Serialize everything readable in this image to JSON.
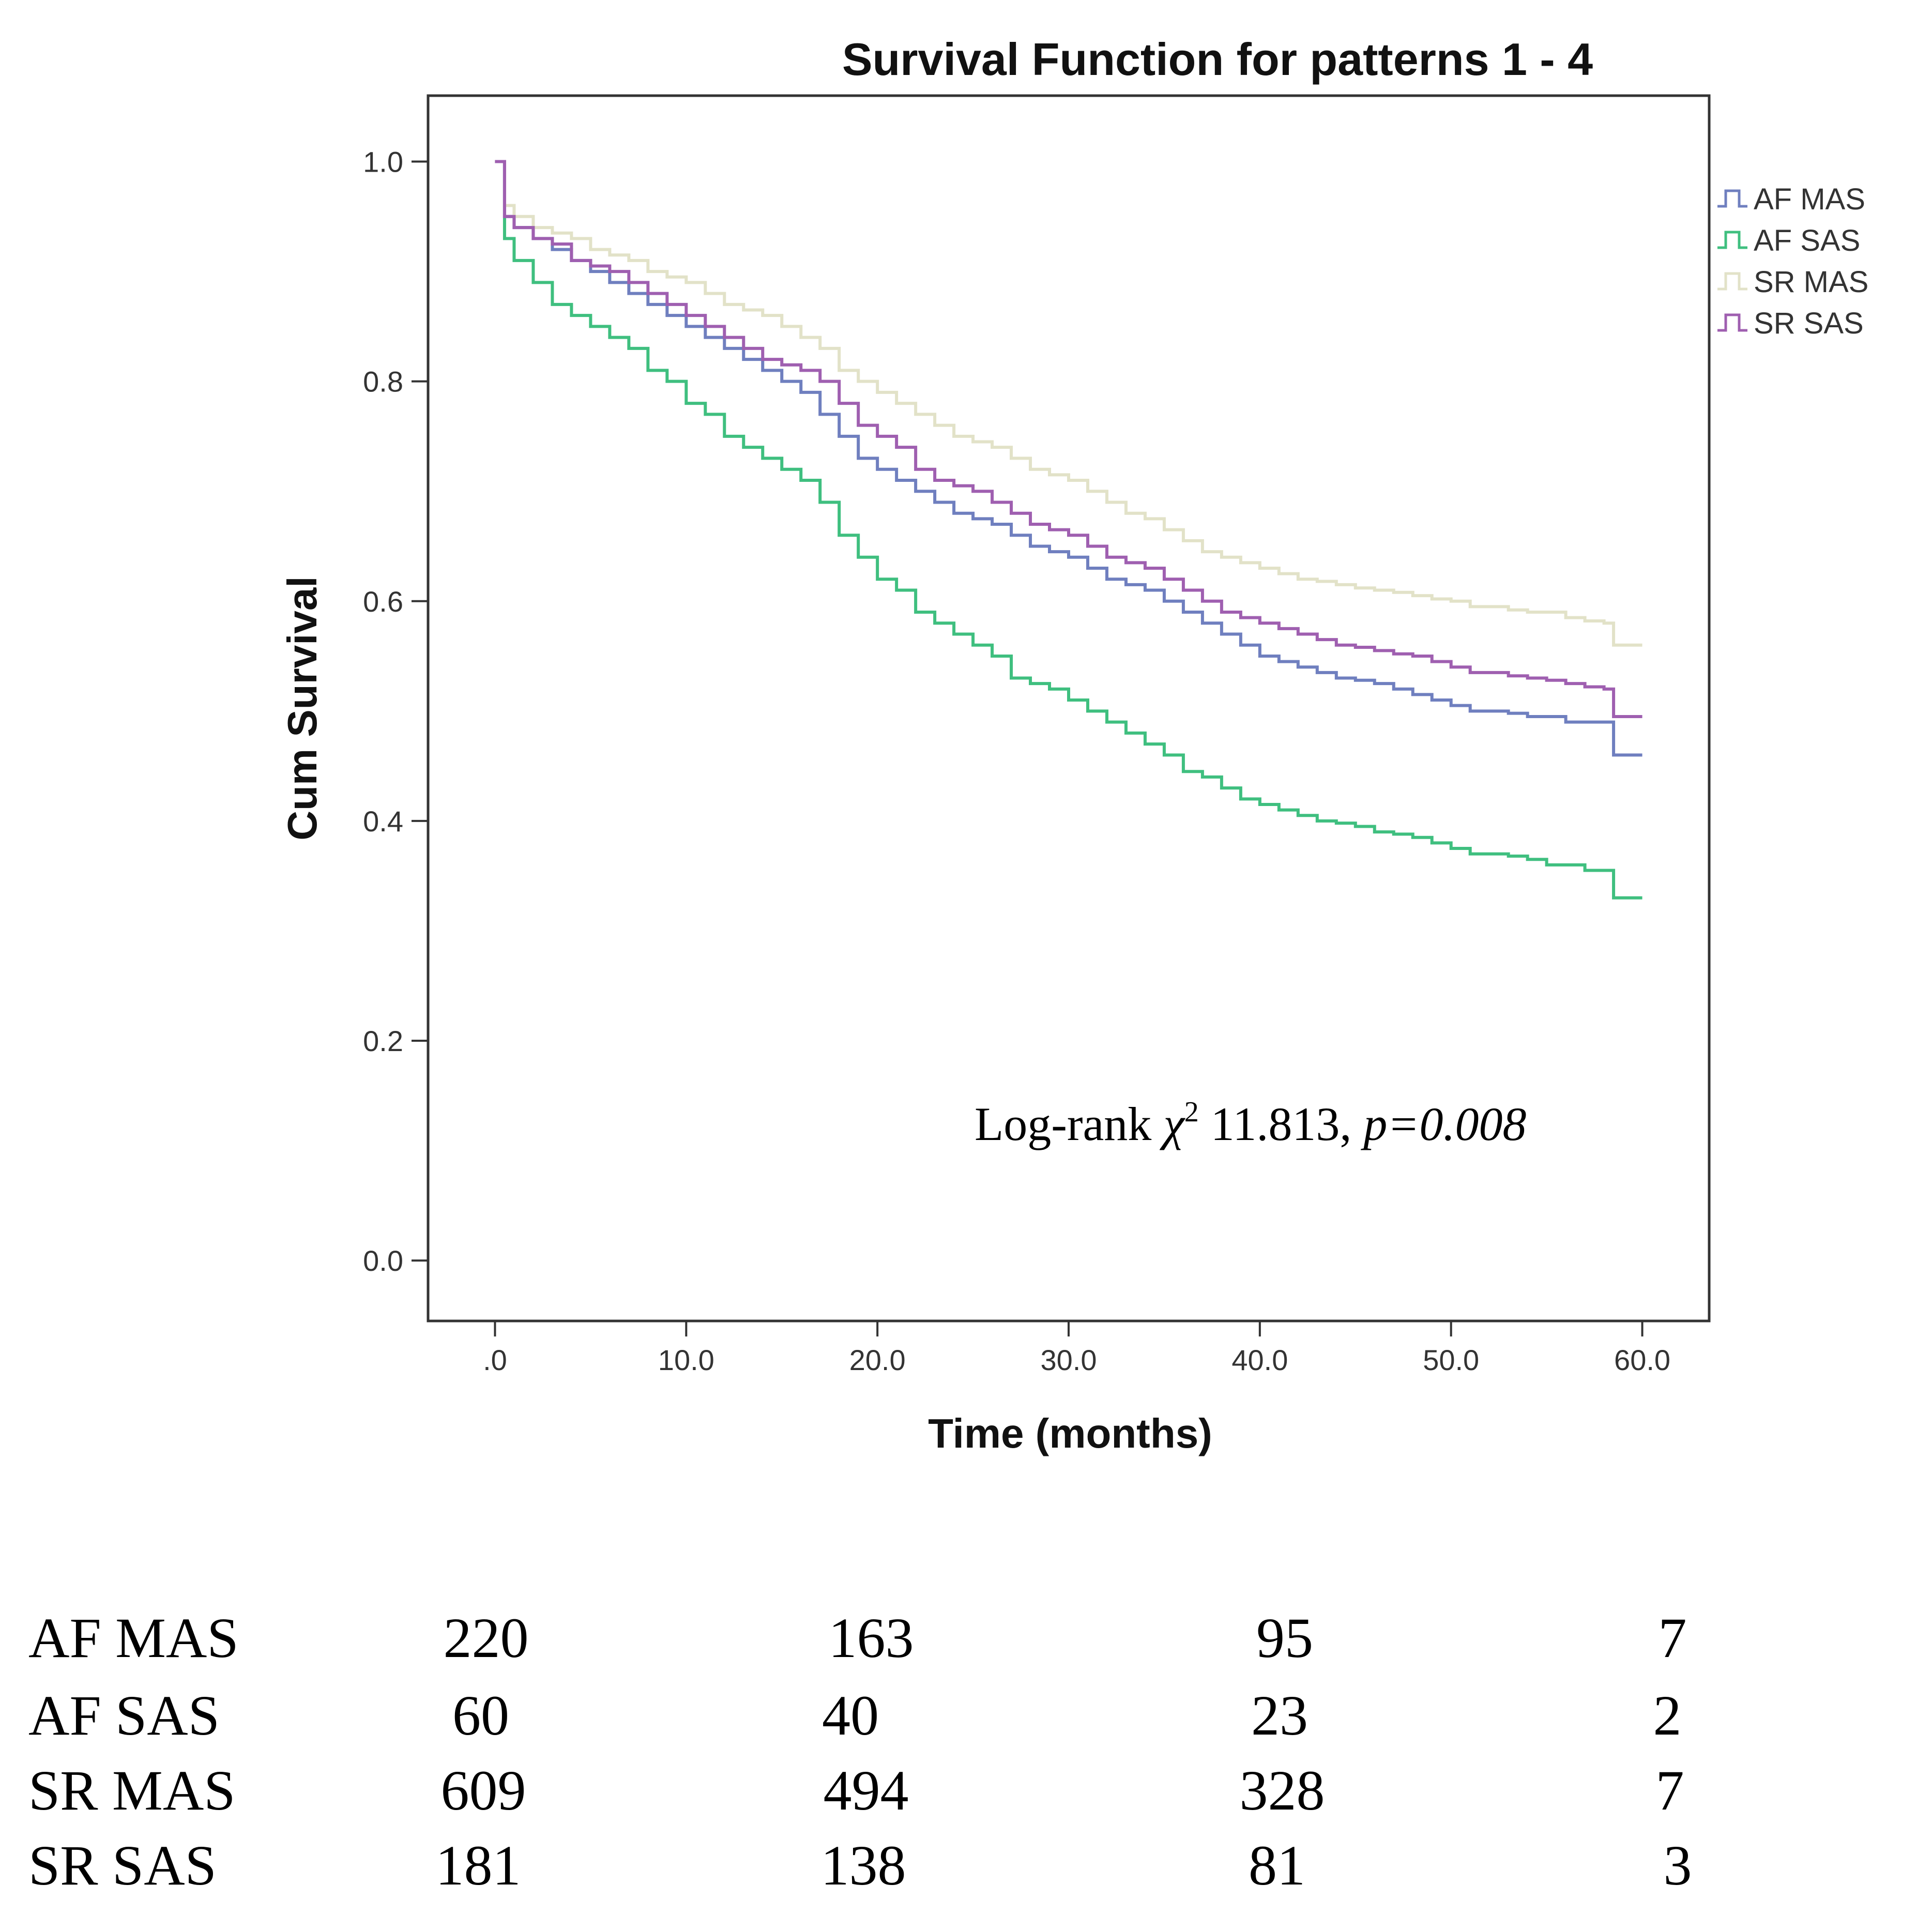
{
  "chart_data": {
    "type": "line",
    "title": "Survival Function for patterns 1 - 4",
    "xlabel": "Time (months)",
    "ylabel": "Cum Survival",
    "xlim": [
      -3.5,
      63.5
    ],
    "ylim": [
      -0.055,
      1.06
    ],
    "xticks": [
      0,
      10,
      20,
      30,
      40,
      50,
      60
    ],
    "xtick_labels": [
      ".0",
      "10.0",
      "20.0",
      "30.0",
      "40.0",
      "50.0",
      "60.0"
    ],
    "yticks": [
      0,
      0.2,
      0.4,
      0.6,
      0.8,
      1.0
    ],
    "ytick_labels": [
      "0.0",
      "0.2",
      "0.4",
      "0.6",
      "0.8",
      "1.0"
    ],
    "grid": false,
    "legend_position": "right",
    "annotation": {
      "prefix": "Log-rank ",
      "chi": "χ",
      "sup": "2",
      "stat": " 11.813, ",
      "p_label": "p",
      "p_value": "=0.008"
    },
    "series": [
      {
        "name": "AF MAS",
        "color": "#6f7fbf",
        "x": [
          0,
          0.3,
          0.5,
          1,
          2,
          3,
          4,
          5,
          6,
          7,
          8,
          9,
          10,
          11,
          12,
          13,
          14,
          15,
          16,
          17,
          18,
          19,
          20,
          21,
          22,
          23,
          24,
          25,
          26,
          27,
          28,
          29,
          30,
          31,
          32,
          33,
          34,
          35,
          36,
          37,
          38,
          39,
          40,
          41,
          42,
          43,
          44,
          45,
          46,
          47,
          48,
          49,
          50,
          51,
          52,
          53,
          54,
          55,
          56,
          57,
          58,
          58.5,
          60
        ],
        "y": [
          1.0,
          1.0,
          0.95,
          0.94,
          0.93,
          0.92,
          0.91,
          0.9,
          0.89,
          0.88,
          0.87,
          0.86,
          0.85,
          0.84,
          0.83,
          0.82,
          0.81,
          0.8,
          0.79,
          0.77,
          0.75,
          0.73,
          0.72,
          0.71,
          0.7,
          0.69,
          0.68,
          0.675,
          0.67,
          0.66,
          0.65,
          0.645,
          0.64,
          0.63,
          0.62,
          0.615,
          0.61,
          0.6,
          0.59,
          0.58,
          0.57,
          0.56,
          0.55,
          0.545,
          0.54,
          0.535,
          0.53,
          0.528,
          0.525,
          0.52,
          0.515,
          0.51,
          0.505,
          0.5,
          0.5,
          0.498,
          0.495,
          0.495,
          0.49,
          0.49,
          0.49,
          0.46,
          0.46
        ]
      },
      {
        "name": "AF SAS",
        "color": "#3fbf7f",
        "x": [
          0,
          0.3,
          0.5,
          1,
          2,
          3,
          4,
          5,
          6,
          7,
          8,
          9,
          10,
          11,
          12,
          13,
          14,
          15,
          16,
          17,
          18,
          19,
          20,
          21,
          22,
          23,
          24,
          25,
          26,
          27,
          28,
          29,
          30,
          31,
          32,
          33,
          34,
          35,
          36,
          37,
          38,
          39,
          40,
          41,
          42,
          43,
          44,
          45,
          46,
          47,
          48,
          49,
          50,
          51,
          52,
          53,
          54,
          55,
          56,
          57,
          58,
          58.5,
          60
        ],
        "y": [
          1.0,
          1.0,
          0.93,
          0.91,
          0.89,
          0.87,
          0.86,
          0.85,
          0.84,
          0.83,
          0.81,
          0.8,
          0.78,
          0.77,
          0.75,
          0.74,
          0.73,
          0.72,
          0.71,
          0.69,
          0.66,
          0.64,
          0.62,
          0.61,
          0.59,
          0.58,
          0.57,
          0.56,
          0.55,
          0.53,
          0.525,
          0.52,
          0.51,
          0.5,
          0.49,
          0.48,
          0.47,
          0.46,
          0.445,
          0.44,
          0.43,
          0.42,
          0.415,
          0.41,
          0.405,
          0.4,
          0.398,
          0.395,
          0.39,
          0.388,
          0.385,
          0.38,
          0.375,
          0.37,
          0.37,
          0.368,
          0.365,
          0.36,
          0.36,
          0.355,
          0.355,
          0.33,
          0.33
        ]
      },
      {
        "name": "SR MAS",
        "color": "#e2e2c8",
        "x": [
          0,
          0.3,
          0.5,
          1,
          2,
          3,
          4,
          5,
          6,
          7,
          8,
          9,
          10,
          11,
          12,
          13,
          14,
          15,
          16,
          17,
          18,
          19,
          20,
          21,
          22,
          23,
          24,
          25,
          26,
          27,
          28,
          29,
          30,
          31,
          32,
          33,
          34,
          35,
          36,
          37,
          38,
          39,
          40,
          41,
          42,
          43,
          44,
          45,
          46,
          47,
          48,
          49,
          50,
          51,
          52,
          53,
          54,
          55,
          56,
          57,
          58,
          58.5,
          60
        ],
        "y": [
          1.0,
          1.0,
          0.96,
          0.95,
          0.94,
          0.935,
          0.93,
          0.92,
          0.915,
          0.91,
          0.9,
          0.895,
          0.89,
          0.88,
          0.87,
          0.865,
          0.86,
          0.85,
          0.84,
          0.83,
          0.81,
          0.8,
          0.79,
          0.78,
          0.77,
          0.76,
          0.75,
          0.745,
          0.74,
          0.73,
          0.72,
          0.715,
          0.71,
          0.7,
          0.69,
          0.68,
          0.675,
          0.665,
          0.655,
          0.645,
          0.64,
          0.635,
          0.63,
          0.625,
          0.62,
          0.618,
          0.615,
          0.612,
          0.61,
          0.608,
          0.605,
          0.602,
          0.6,
          0.595,
          0.595,
          0.592,
          0.59,
          0.59,
          0.585,
          0.582,
          0.58,
          0.56,
          0.56
        ]
      },
      {
        "name": "SR SAS",
        "color": "#9f5fb0",
        "x": [
          0,
          0.3,
          0.5,
          1,
          2,
          3,
          4,
          5,
          6,
          7,
          8,
          9,
          10,
          11,
          12,
          13,
          14,
          15,
          16,
          17,
          18,
          19,
          20,
          21,
          22,
          23,
          24,
          25,
          26,
          27,
          28,
          29,
          30,
          31,
          32,
          33,
          34,
          35,
          36,
          37,
          38,
          39,
          40,
          41,
          42,
          43,
          44,
          45,
          46,
          47,
          48,
          49,
          50,
          51,
          52,
          53,
          54,
          55,
          56,
          57,
          58,
          58.5,
          60
        ],
        "y": [
          1.0,
          1.0,
          0.95,
          0.94,
          0.93,
          0.925,
          0.91,
          0.905,
          0.9,
          0.89,
          0.88,
          0.87,
          0.86,
          0.85,
          0.84,
          0.83,
          0.82,
          0.815,
          0.81,
          0.8,
          0.78,
          0.76,
          0.75,
          0.74,
          0.72,
          0.71,
          0.705,
          0.7,
          0.69,
          0.68,
          0.67,
          0.665,
          0.66,
          0.65,
          0.64,
          0.635,
          0.63,
          0.62,
          0.61,
          0.6,
          0.59,
          0.585,
          0.58,
          0.575,
          0.57,
          0.565,
          0.56,
          0.558,
          0.555,
          0.552,
          0.55,
          0.545,
          0.54,
          0.535,
          0.535,
          0.532,
          0.53,
          0.528,
          0.525,
          0.522,
          0.52,
          0.495,
          0.495
        ]
      }
    ]
  },
  "risk_table": {
    "rows": [
      {
        "label": "AF MAS",
        "values": [
          "220",
          "163",
          "95",
          "7"
        ]
      },
      {
        "label": "AF SAS",
        "values": [
          "60",
          "40",
          "23",
          "2"
        ]
      },
      {
        "label": "SR MAS",
        "values": [
          "609",
          "494",
          "328",
          "7"
        ]
      },
      {
        "label": "SR SAS",
        "values": [
          "181",
          "138",
          "81",
          "3"
        ]
      }
    ]
  }
}
